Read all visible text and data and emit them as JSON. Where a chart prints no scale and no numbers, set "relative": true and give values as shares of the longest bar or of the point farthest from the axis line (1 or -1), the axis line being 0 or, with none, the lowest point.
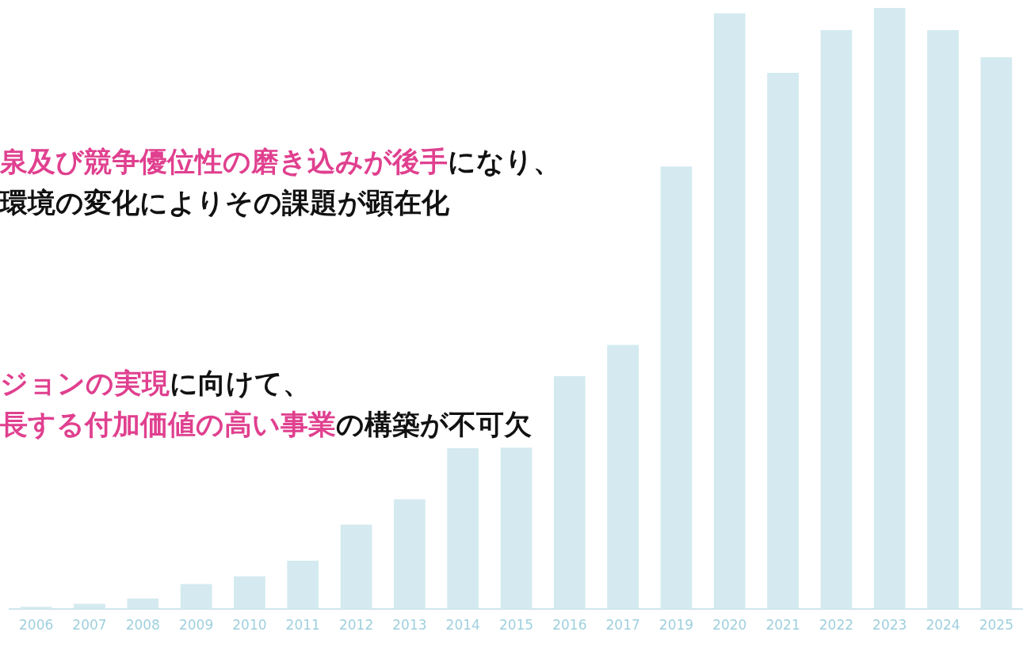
{
  "chart_data": {
    "type": "bar",
    "relative": true,
    "color": "#d4eaf0",
    "grid": false,
    "legend": false,
    "tick_labels": "x",
    "categories": [
      "2006",
      "2007",
      "2008",
      "2009",
      "2010",
      "2011",
      "2012",
      "2013",
      "2014",
      "2015",
      "2016",
      "2017",
      "2019",
      "2020",
      "2021",
      "2022",
      "2023",
      "2024",
      "2025"
    ],
    "values": [
      0.003,
      0.008,
      0.017,
      0.041,
      0.054,
      0.08,
      0.14,
      0.182,
      0.267,
      0.268,
      0.387,
      0.439,
      0.736,
      0.991,
      0.892,
      0.963,
      1,
      0.963,
      0.918
    ],
    "annotations": [
      "泉及び競争優位性の磨き込みが後手",
      "になり、",
      "環境の変化によりその課題が顕在化",
      "ジョンの実現",
      "に向けて、",
      "長する付加価値の高い事業",
      "の構築が不可欠"
    ]
  }
}
